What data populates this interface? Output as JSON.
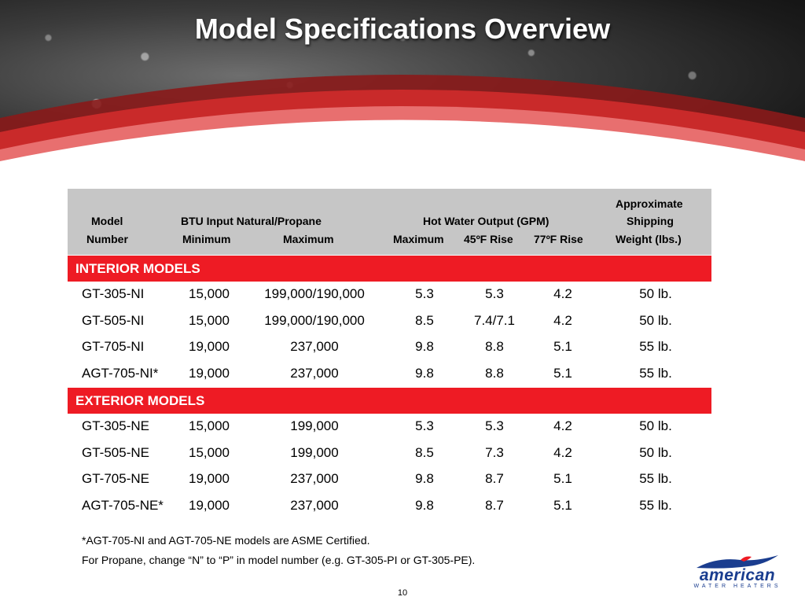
{
  "title": "Model Specifications Overview",
  "header": {
    "model_line1": "Model",
    "model_line2": "Number",
    "btu_title": "BTU Input Natural/Propane",
    "btu_min": "Minimum",
    "btu_max": "Maximum",
    "hw_title": "Hot Water Output (GPM)",
    "hw_max": "Maximum",
    "hw_45": "45ºF Rise",
    "hw_77": "77ºF Rise",
    "weight_line1": "Approximate",
    "weight_line2": "Shipping",
    "weight_line3": "Weight (lbs.)"
  },
  "sections": [
    {
      "label": "INTERIOR MODELS",
      "rows": [
        [
          "GT-305-NI",
          "15,000",
          "199,000/190,000",
          "5.3",
          "5.3",
          "4.2",
          "50 lb."
        ],
        [
          "GT-505-NI",
          "15,000",
          "199,000/190,000",
          "8.5",
          "7.4/7.1",
          "4.2",
          "50 lb."
        ],
        [
          "GT-705-NI",
          "19,000",
          "237,000",
          "9.8",
          "8.8",
          "5.1",
          "55 lb."
        ],
        [
          "AGT-705-NI*",
          "19,000",
          "237,000",
          "9.8",
          "8.8",
          "5.1",
          "55 lb."
        ]
      ]
    },
    {
      "label": "EXTERIOR MODELS",
      "rows": [
        [
          "GT-305-NE",
          "15,000",
          "199,000",
          "5.3",
          "5.3",
          "4.2",
          "50 lb."
        ],
        [
          "GT-505-NE",
          "15,000",
          "199,000",
          "8.5",
          "7.3",
          "4.2",
          "50 lb."
        ],
        [
          "GT-705-NE",
          "19,000",
          "237,000",
          "9.8",
          "8.7",
          "5.1",
          "55 lb."
        ],
        [
          "AGT-705-NE*",
          "19,000",
          "237,000",
          "9.8",
          "8.7",
          "5.1",
          "55 lb."
        ]
      ]
    }
  ],
  "notes": {
    "line1": "*AGT-705-NI and AGT-705-NE models are ASME Certified.",
    "line2": "For Propane, change “N” to “P” in model number (e.g. GT-305-PI or GT-305-PE)."
  },
  "page_number": "10",
  "logo": {
    "word": "american",
    "tagline": "WATER HEATERS"
  },
  "colors": {
    "section_red": "#ee1b24",
    "header_gray": "#c6c6c6",
    "logo_blue": "#1a3d8f"
  }
}
